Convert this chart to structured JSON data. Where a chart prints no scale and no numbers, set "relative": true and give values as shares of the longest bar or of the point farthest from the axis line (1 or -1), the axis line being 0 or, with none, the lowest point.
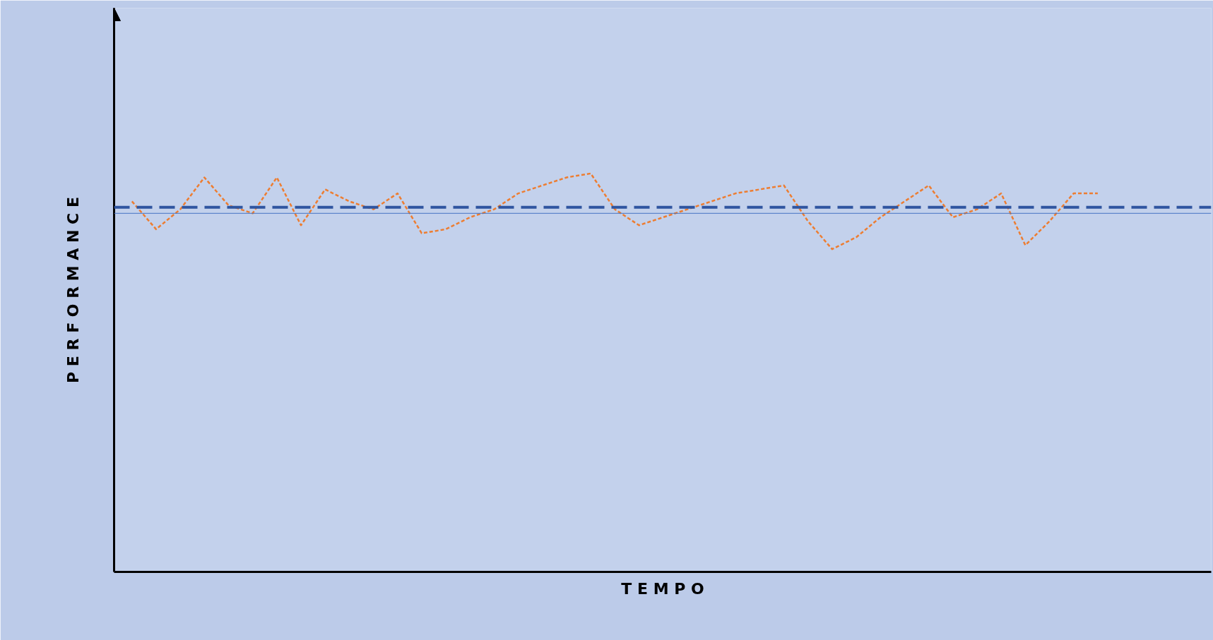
{
  "chart_data": {
    "type": "line",
    "relative": true,
    "xlabel": "T E M P O",
    "ylabel": "P E R F O R M A N C E",
    "marker": "none",
    "line_style": "dashed",
    "categories": [
      null,
      null,
      null,
      null,
      null,
      null,
      null,
      null,
      null,
      null,
      null,
      null,
      null,
      null,
      null,
      null,
      null,
      null,
      null,
      null,
      null,
      null,
      null,
      null,
      null,
      null,
      null,
      null,
      null,
      null,
      null,
      null,
      null,
      null,
      null,
      null,
      null,
      null,
      null,
      null,
      null
    ],
    "series": [
      {
        "color": "#ed7d31",
        "values": [
          0.93,
          0.86,
          0.91,
          0.99,
          0.92,
          0.9,
          0.99,
          0.87,
          0.96,
          0.93,
          0.91,
          0.95,
          0.85,
          0.86,
          0.89,
          0.91,
          0.95,
          0.97,
          0.99,
          1.0,
          0.91,
          0.87,
          0.89,
          0.91,
          0.93,
          0.95,
          0.96,
          0.97,
          0.88,
          0.81,
          0.84,
          0.89,
          0.93,
          0.97,
          0.89,
          0.91,
          0.95,
          0.82,
          0.88,
          0.95,
          0.95
        ]
      }
    ],
    "ref_lines": [
      {
        "axis": "y",
        "value": 0.9,
        "color": "#4472c4",
        "line_style": "solid"
      },
      {
        "axis": "y",
        "value": 0.915,
        "color": "#2f55a0",
        "line_style": "dashed"
      }
    ]
  }
}
